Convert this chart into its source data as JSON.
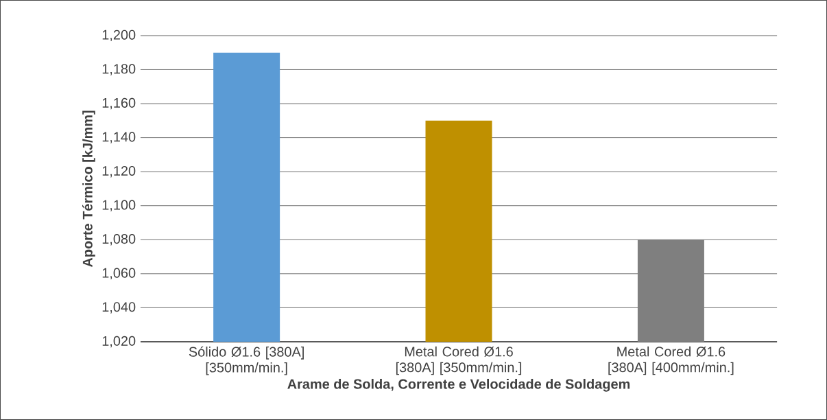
{
  "chart_data": {
    "type": "bar",
    "xlabel": "Arame de Solda, Corrente e Velocidade de Soldagem",
    "ylabel": "Aporte Térmico [kJ/mm]",
    "categories": [
      "Sólido Ø1.6 [380A] [350mm/min.]",
      "Metal Cored Ø1.6 [380A] [350mm/min.]",
      "Metal Cored Ø1.6 [380A] [400mm/min.]"
    ],
    "values": [
      1190,
      1150,
      1080
    ],
    "colors": [
      "#5b9bd5",
      "#bf9000",
      "#7f7f7f"
    ],
    "ylim": [
      1020,
      1200
    ],
    "yticks": [
      {
        "value": 1020,
        "label": "1,020"
      },
      {
        "value": 1040,
        "label": "1,040"
      },
      {
        "value": 1060,
        "label": "1,060"
      },
      {
        "value": 1080,
        "label": "1,080"
      },
      {
        "value": 1100,
        "label": "1,100"
      },
      {
        "value": 1120,
        "label": "1,120"
      },
      {
        "value": 1140,
        "label": "1,140"
      },
      {
        "value": 1160,
        "label": "1,160"
      },
      {
        "value": 1180,
        "label": "1,180"
      },
      {
        "value": 1200,
        "label": "1,200"
      }
    ],
    "grid": "y"
  }
}
